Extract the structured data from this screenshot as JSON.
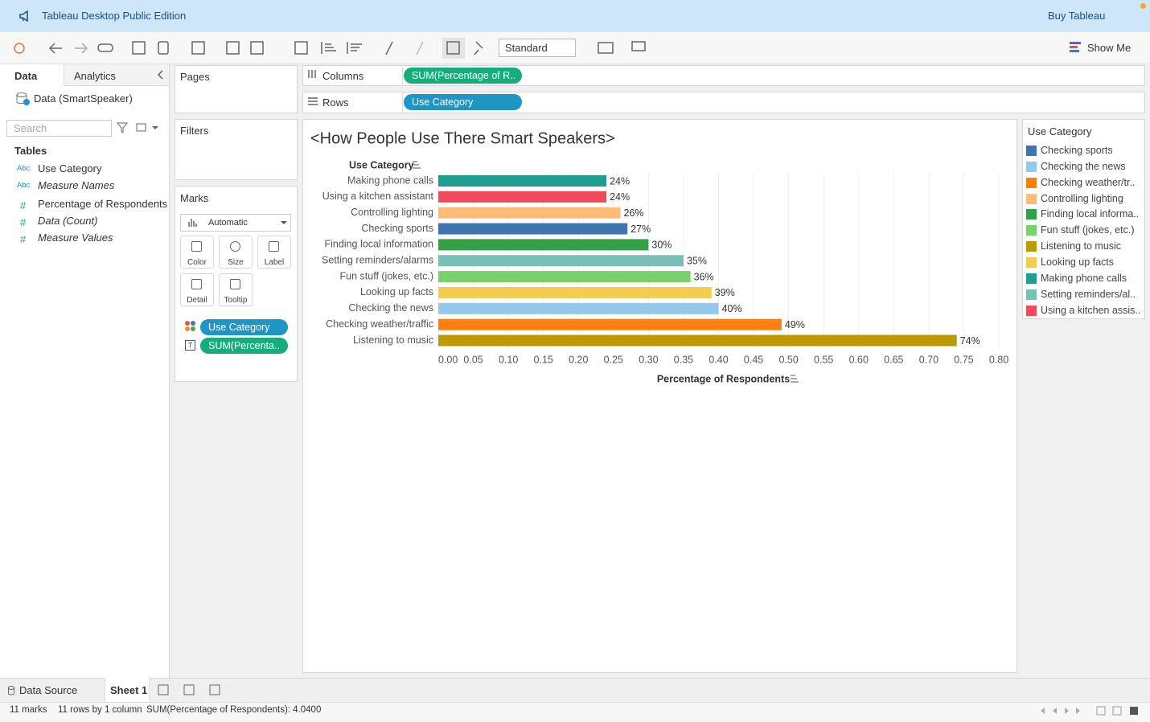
{
  "header": {
    "title": "Tableau Desktop Public Edition",
    "buy": "Buy Tableau"
  },
  "toolbar": {
    "fit": "Standard",
    "show_me": "Show Me"
  },
  "data_pane": {
    "tabs": [
      "Data",
      "Analytics"
    ],
    "source": "Data (SmartSpeaker)",
    "search": "Search",
    "tables": "Tables",
    "fields": [
      {
        "icon": "Abc",
        "name": "Use Category",
        "italic": false
      },
      {
        "icon": "Abc",
        "name": "Measure Names",
        "italic": true
      },
      {
        "icon": "#",
        "name": "Percentage of Respondents",
        "italic": false
      },
      {
        "icon": "#",
        "name": "Data (Count)",
        "italic": true
      },
      {
        "icon": "#",
        "name": "Measure Values",
        "italic": true
      }
    ]
  },
  "cards": {
    "pages": "Pages",
    "filters": "Filters",
    "marks": "Marks",
    "mark_type": "Automatic",
    "buttons": [
      "Color",
      "Size",
      "Label",
      "Detail",
      "Tooltip"
    ],
    "pills": [
      "Use Category",
      "SUM(Percenta.."
    ]
  },
  "shelves": {
    "columns": {
      "label": "Columns",
      "pill": "SUM(Percentage of R.."
    },
    "rows": {
      "label": "Rows",
      "pill": "Use Category"
    }
  },
  "chart_data": {
    "type": "bar",
    "orientation": "horizontal",
    "title": "<How People Use There Smart Speakers>",
    "y_label": "Use Category",
    "x_label": "Percentage of Respondents",
    "categories": [
      "Making phone calls",
      "Using a kitchen assistant",
      "Controlling lighting",
      "Checking sports",
      "Finding local information",
      "Setting reminders/alarms",
      "Fun stuff (jokes, etc.)",
      "Looking up facts",
      "Checking the news",
      "Checking weather/traffic",
      "Listening to music"
    ],
    "values": [
      0.24,
      0.24,
      0.26,
      0.27,
      0.3,
      0.35,
      0.36,
      0.39,
      0.4,
      0.49,
      0.74
    ],
    "value_labels": [
      "24%",
      "24%",
      "26%",
      "27%",
      "30%",
      "35%",
      "36%",
      "39%",
      "40%",
      "49%",
      "74%"
    ],
    "colors": [
      "#1f9e8f",
      "#ef4b5a",
      "#ffbb78",
      "#3f76ad",
      "#33a047",
      "#79bfb5",
      "#7bd06e",
      "#f4cd50",
      "#92c9ec",
      "#ff7f0e",
      "#bd9b00"
    ],
    "xlim": [
      0,
      0.8
    ],
    "xticks": [
      {
        "value": 0,
        "label": "0.00"
      },
      0.05,
      {
        "value": 0.1,
        "label": "0.10"
      },
      0.15,
      {
        "value": 0.2,
        "label": "0.20"
      },
      0.25,
      {
        "value": 0.3,
        "label": "0.30"
      },
      0.35,
      {
        "value": 0.4,
        "label": "0.40"
      },
      0.45,
      {
        "value": 0.5,
        "label": "0.50"
      },
      0.55,
      {
        "value": 0.6,
        "label": "0.60"
      },
      0.65,
      {
        "value": 0.7,
        "label": "0.70"
      },
      0.75,
      {
        "value": 0.8,
        "label": "0.80"
      }
    ],
    "grid": true
  },
  "legend": {
    "title": "Use Category",
    "items": [
      {
        "label": "Checking sports",
        "color": "#3f76ad"
      },
      {
        "label": "Checking the news",
        "color": "#92c9ec"
      },
      {
        "label": "Checking weather/tr..",
        "color": "#ff7f0e"
      },
      {
        "label": "Controlling lighting",
        "color": "#ffbb78"
      },
      {
        "label": "Finding local informa..",
        "color": "#33a047"
      },
      {
        "label": "Fun stuff (jokes, etc.)",
        "color": "#7bd06e"
      },
      {
        "label": "Listening to music",
        "color": "#bd9b00"
      },
      {
        "label": "Looking up facts",
        "color": "#f4cd50"
      },
      {
        "label": "Making phone calls",
        "color": "#1f9e8f"
      },
      {
        "label": "Setting reminders/al..",
        "color": "#79bfb5"
      },
      {
        "label": "Using a kitchen assis..",
        "color": "#ef4b5a"
      }
    ]
  },
  "sheet_tabs": [
    "Data Source",
    "Sheet 1"
  ],
  "status": [
    "11 marks",
    "11 rows by 1 column",
    "SUM(Percentage of Respondents): 4.0400"
  ]
}
